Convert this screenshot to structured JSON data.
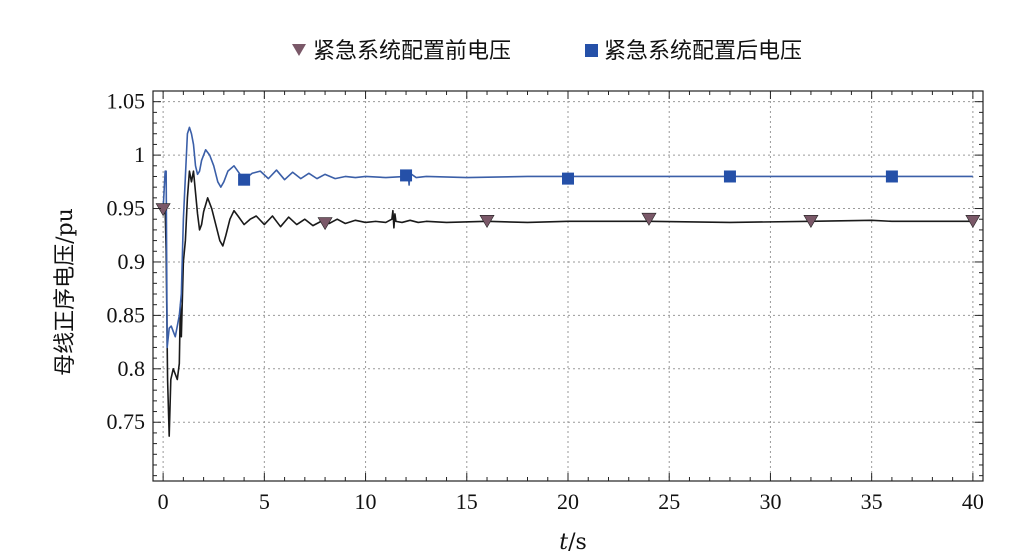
{
  "chart_data": {
    "type": "line",
    "legend_position": "top",
    "grid": true,
    "xlabel_var": "t",
    "xlabel_unit": "/s",
    "ylabel": "母线正序电压/pu",
    "xlim": [
      -0.5,
      40.5
    ],
    "ylim": [
      0.695,
      1.06
    ],
    "x_ticks": [
      0,
      5,
      10,
      15,
      20,
      25,
      30,
      35,
      40
    ],
    "x_tick_labels": [
      "0",
      "5",
      "10",
      "15",
      "20",
      "25",
      "30",
      "35",
      "40"
    ],
    "y_ticks": [
      0.75,
      0.8,
      0.85,
      0.9,
      0.95,
      1.0,
      1.05
    ],
    "y_tick_labels": [
      "0.75",
      "0.8",
      "0.85",
      "0.9",
      "0.95",
      "1",
      "1.05"
    ],
    "series": [
      {
        "name": "紧急系统配置前电压",
        "color": "#1a1a1a",
        "marker": "triangle-down",
        "marker_color": "#7a5868",
        "markers": [
          [
            0,
            0.949
          ],
          [
            8,
            0.936
          ],
          [
            16,
            0.938
          ],
          [
            24,
            0.94
          ],
          [
            32,
            0.938
          ],
          [
            40,
            0.938
          ]
        ],
        "points": [
          [
            0,
            0.949
          ],
          [
            0.1,
            0.949
          ],
          [
            0.15,
            0.91
          ],
          [
            0.22,
            0.79
          ],
          [
            0.3,
            0.737
          ],
          [
            0.38,
            0.79
          ],
          [
            0.5,
            0.8
          ],
          [
            0.6,
            0.795
          ],
          [
            0.7,
            0.79
          ],
          [
            0.8,
            0.805
          ],
          [
            0.85,
            0.86
          ],
          [
            0.9,
            0.83
          ],
          [
            1.0,
            0.9
          ],
          [
            1.1,
            0.92
          ],
          [
            1.2,
            0.96
          ],
          [
            1.3,
            0.985
          ],
          [
            1.4,
            0.975
          ],
          [
            1.5,
            0.985
          ],
          [
            1.6,
            0.965
          ],
          [
            1.7,
            0.945
          ],
          [
            1.8,
            0.93
          ],
          [
            1.9,
            0.935
          ],
          [
            2.0,
            0.947
          ],
          [
            2.2,
            0.96
          ],
          [
            2.4,
            0.95
          ],
          [
            2.6,
            0.935
          ],
          [
            2.8,
            0.92
          ],
          [
            2.95,
            0.915
          ],
          [
            3.1,
            0.925
          ],
          [
            3.3,
            0.94
          ],
          [
            3.5,
            0.948
          ],
          [
            3.7,
            0.943
          ],
          [
            4.0,
            0.935
          ],
          [
            4.3,
            0.94
          ],
          [
            4.6,
            0.943
          ],
          [
            5.0,
            0.935
          ],
          [
            5.4,
            0.943
          ],
          [
            5.8,
            0.933
          ],
          [
            6.2,
            0.942
          ],
          [
            6.6,
            0.935
          ],
          [
            7.0,
            0.94
          ],
          [
            7.4,
            0.934
          ],
          [
            7.8,
            0.938
          ],
          [
            8.2,
            0.936
          ],
          [
            8.6,
            0.94
          ],
          [
            9.0,
            0.936
          ],
          [
            9.5,
            0.939
          ],
          [
            10.0,
            0.937
          ],
          [
            10.5,
            0.938
          ],
          [
            11.0,
            0.937
          ],
          [
            11.3,
            0.94
          ],
          [
            11.35,
            0.948
          ],
          [
            11.4,
            0.932
          ],
          [
            11.45,
            0.945
          ],
          [
            11.5,
            0.938
          ],
          [
            11.8,
            0.937
          ],
          [
            12.2,
            0.939
          ],
          [
            12.6,
            0.937
          ],
          [
            13.0,
            0.938
          ],
          [
            14.0,
            0.937
          ],
          [
            16.0,
            0.938
          ],
          [
            18.0,
            0.937
          ],
          [
            20.0,
            0.938
          ],
          [
            24.0,
            0.938
          ],
          [
            28.0,
            0.937
          ],
          [
            32.0,
            0.938
          ],
          [
            35.0,
            0.939
          ],
          [
            36.0,
            0.938
          ],
          [
            40.0,
            0.938
          ]
        ]
      },
      {
        "name": "紧急系统配置后电压",
        "color": "#3b5fa8",
        "marker": "square",
        "marker_color": "#2550a8",
        "markers": [
          [
            4,
            0.977
          ],
          [
            12,
            0.981
          ],
          [
            20,
            0.978
          ],
          [
            28,
            0.98
          ],
          [
            36,
            0.98
          ]
        ],
        "points": [
          [
            0,
            0.949
          ],
          [
            0.1,
            0.985
          ],
          [
            0.15,
            0.985
          ],
          [
            0.2,
            0.82
          ],
          [
            0.3,
            0.838
          ],
          [
            0.4,
            0.84
          ],
          [
            0.5,
            0.835
          ],
          [
            0.6,
            0.83
          ],
          [
            0.7,
            0.84
          ],
          [
            0.8,
            0.85
          ],
          [
            0.9,
            0.87
          ],
          [
            1.0,
            0.94
          ],
          [
            1.1,
            0.98
          ],
          [
            1.2,
            1.02
          ],
          [
            1.3,
            1.026
          ],
          [
            1.4,
            1.02
          ],
          [
            1.5,
            1.01
          ],
          [
            1.6,
            0.99
          ],
          [
            1.7,
            0.982
          ],
          [
            1.8,
            0.985
          ],
          [
            1.9,
            0.995
          ],
          [
            2.1,
            1.005
          ],
          [
            2.3,
            1.0
          ],
          [
            2.5,
            0.99
          ],
          [
            2.7,
            0.975
          ],
          [
            2.85,
            0.97
          ],
          [
            3.0,
            0.975
          ],
          [
            3.2,
            0.985
          ],
          [
            3.5,
            0.99
          ],
          [
            3.8,
            0.982
          ],
          [
            4.0,
            0.977
          ],
          [
            4.4,
            0.983
          ],
          [
            4.8,
            0.985
          ],
          [
            5.2,
            0.978
          ],
          [
            5.6,
            0.986
          ],
          [
            6.0,
            0.977
          ],
          [
            6.4,
            0.984
          ],
          [
            6.8,
            0.978
          ],
          [
            7.2,
            0.983
          ],
          [
            7.6,
            0.978
          ],
          [
            8.0,
            0.982
          ],
          [
            8.5,
            0.978
          ],
          [
            9.0,
            0.98
          ],
          [
            9.5,
            0.979
          ],
          [
            10.0,
            0.98
          ],
          [
            11.0,
            0.979
          ],
          [
            12.0,
            0.98
          ],
          [
            12.1,
            0.985
          ],
          [
            12.15,
            0.972
          ],
          [
            12.2,
            0.983
          ],
          [
            12.5,
            0.979
          ],
          [
            13.0,
            0.98
          ],
          [
            15.0,
            0.979
          ],
          [
            18.0,
            0.98
          ],
          [
            20.0,
            0.98
          ],
          [
            24.0,
            0.98
          ],
          [
            28.0,
            0.98
          ],
          [
            32.0,
            0.98
          ],
          [
            36.0,
            0.98
          ],
          [
            40.0,
            0.98
          ]
        ]
      }
    ]
  }
}
